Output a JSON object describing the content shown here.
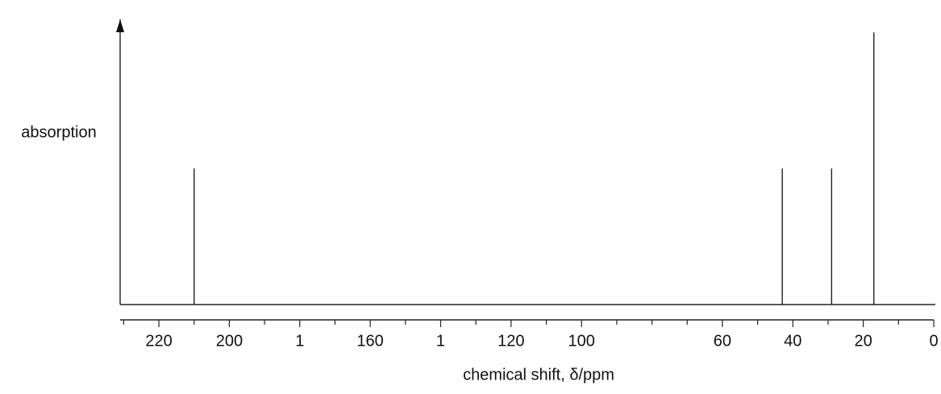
{
  "chart_data": {
    "type": "stem",
    "x_label": "chemical shift, δ/ppm",
    "y_label": "absorption",
    "x": [
      210,
      43,
      29,
      17
    ],
    "values": [
      1,
      1,
      1,
      2
    ],
    "color": "#222222",
    "xlim": [
      231,
      0
    ],
    "ylim": [
      0,
      2.15
    ],
    "xticks": [
      220,
      200,
      {
        "value": 180,
        "label": "1"
      },
      160,
      {
        "value": 140,
        "label": "1"
      },
      120,
      100,
      60,
      40,
      20,
      0
    ],
    "xminor_ticks": [
      230,
      210,
      190,
      170,
      150,
      130,
      110,
      90,
      80,
      70,
      50,
      30,
      10
    ]
  }
}
